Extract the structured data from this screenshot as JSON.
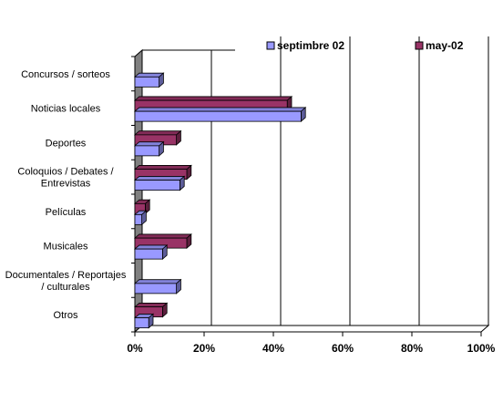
{
  "chart_data": {
    "type": "bar",
    "orientation": "horizontal",
    "style": "3d",
    "categories": [
      [
        "Concursos / sorteos"
      ],
      [
        "Noticias locales"
      ],
      [
        "Deportes"
      ],
      [
        "Coloquios / Debates /",
        "Entrevistas"
      ],
      [
        "Películas"
      ],
      [
        "Musicales"
      ],
      [
        "Documentales / Reportajes",
        "/ culturales"
      ],
      [
        "Otros"
      ]
    ],
    "series": [
      {
        "name": "septimbre 02",
        "color": "#9999FF",
        "values": [
          7,
          48,
          7,
          13,
          2,
          8,
          12,
          4
        ]
      },
      {
        "name": "may-02",
        "color": "#993366",
        "values": [
          0,
          44,
          12,
          15,
          3,
          15,
          0,
          8
        ]
      }
    ],
    "xlim": [
      0,
      100
    ],
    "xticks": [
      "0%",
      "20%",
      "40%",
      "60%",
      "80%",
      "100%"
    ],
    "grid": true,
    "legend_position": "top-right"
  }
}
